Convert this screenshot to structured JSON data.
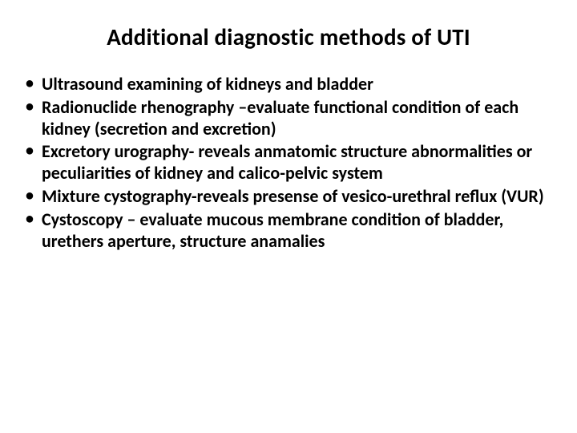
{
  "slide": {
    "title": "Additional diagnostic methods of UTI",
    "title_fontsize": 29,
    "title_color": "#000000",
    "background_color": "#ffffff",
    "body_fontsize": 22,
    "body_color": "#000000",
    "font_weight": "bold",
    "bullets": [
      {
        "text": "Ultrasound examining of kidneys and bladder"
      },
      {
        "text": "Radionuclide rhenography –evaluate functional condition of each  kidney (secretion and excretion)"
      },
      {
        "text": "Excretory urography- reveals anmatomic structure abnormalities or peculiarities of kidney and calico-pelvic system"
      },
      {
        "text": "Mixture cystography-reveals presense of vesico-urethral reflux (VUR)"
      },
      {
        "text": "Cystoscopy – evaluate mucous membrane condition of bladder, urethers aperture, structure anamalies"
      }
    ],
    "bullet_marker": "•"
  }
}
